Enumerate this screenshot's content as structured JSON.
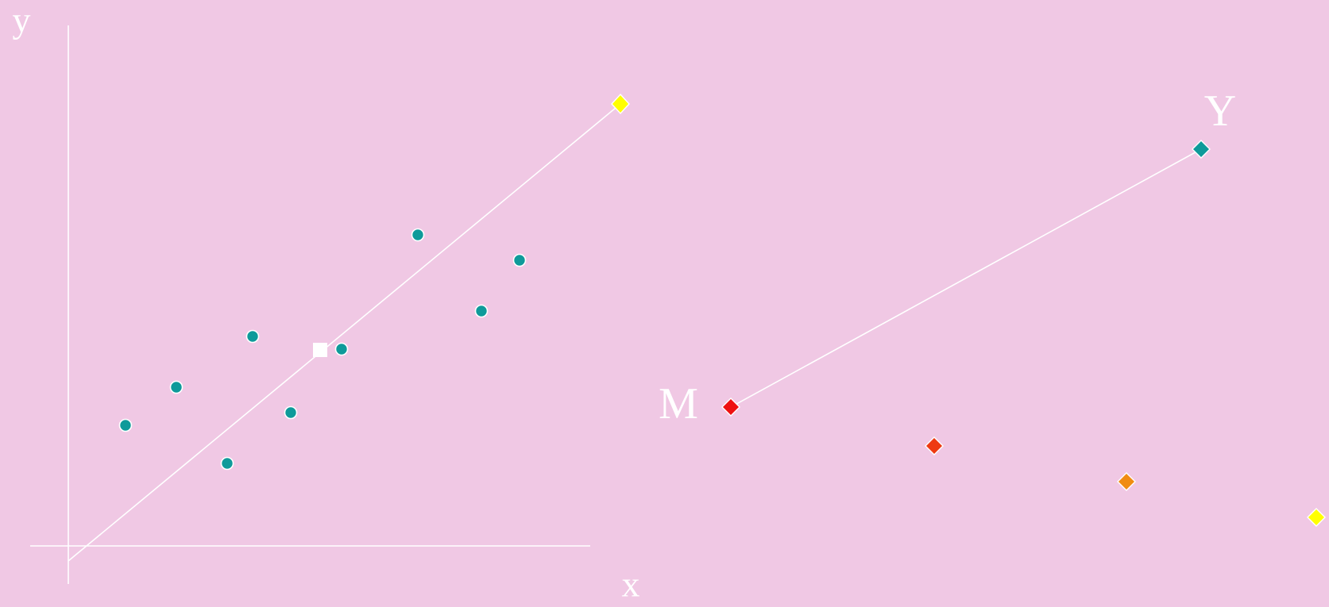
{
  "axes": {
    "y_label": "y",
    "x_label": "x"
  },
  "space": {
    "origin_label": "M",
    "target_label": "Y"
  }
}
